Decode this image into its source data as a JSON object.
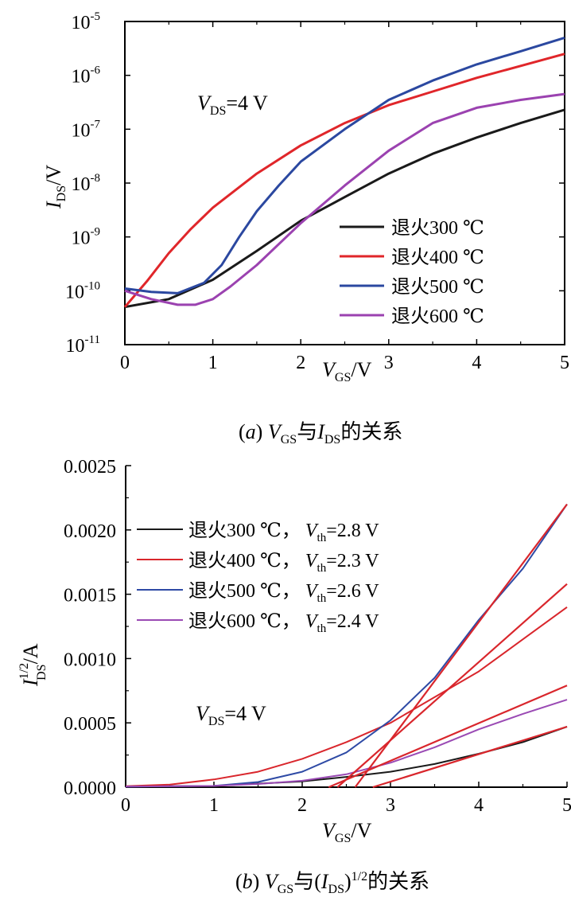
{
  "chart_data": [
    {
      "type": "line",
      "caption": {
        "pre": "(",
        "letter": "a",
        "mid": ") ",
        "v": "V",
        "vsub": "GS",
        "join": "与",
        "i": "I",
        "isub": "DS",
        "tail": "的关系"
      },
      "xlabel": {
        "main": "V",
        "sub": "GS",
        "unit": "/V"
      },
      "ylabel": {
        "main": "I",
        "sub": "DS",
        "unit": "/V"
      },
      "annotation": {
        "main": "V",
        "sub": "DS",
        "rest": "=4 V"
      },
      "x_ticks": [
        "0",
        "1",
        "2",
        "3",
        "4",
        "5"
      ],
      "y_tick_base": "10",
      "y_tick_exponents": [
        "-11",
        "-10",
        "-9",
        "-8",
        "-7",
        "-6",
        "-5"
      ],
      "xlim": [
        0,
        5
      ],
      "ylim": [
        1e-11,
        1e-05
      ],
      "yscale": "log",
      "legend_position": "bottom-right",
      "series": [
        {
          "name": "退火300 ℃",
          "color": "#1a1a1a",
          "x": [
            0,
            0.5,
            1,
            1.5,
            2,
            2.5,
            3,
            3.5,
            4,
            4.5,
            5
          ],
          "y": [
            5e-11,
            7e-11,
            1.6e-10,
            5.5e-10,
            2e-09,
            5.5e-09,
            1.5e-08,
            3.5e-08,
            7e-08,
            1.3e-07,
            2.3e-07
          ]
        },
        {
          "name": "退火400 ℃",
          "color": "#e0262a",
          "x": [
            0,
            0.25,
            0.5,
            0.75,
            1,
            1.5,
            2,
            2.5,
            3,
            3.5,
            4,
            4.5,
            5
          ],
          "y": [
            5e-11,
            1.5e-10,
            5e-10,
            1.4e-09,
            3.5e-09,
            1.5e-08,
            5e-08,
            1.3e-07,
            2.8e-07,
            5e-07,
            9e-07,
            1.5e-06,
            2.5e-06
          ]
        },
        {
          "name": "退火500 ℃",
          "color": "#2b48a0",
          "x": [
            0,
            0.3,
            0.6,
            0.9,
            1.1,
            1.3,
            1.5,
            1.75,
            2,
            2.5,
            3,
            3.5,
            4,
            4.5,
            5
          ],
          "y": [
            1.1e-10,
            9.5e-11,
            9e-11,
            1.4e-10,
            3e-10,
            1e-09,
            3e-09,
            9e-09,
            2.5e-08,
            1e-07,
            3.5e-07,
            8e-07,
            1.6e-06,
            2.8e-06,
            5e-06
          ]
        },
        {
          "name": "退火600 ℃",
          "color": "#9b42b0",
          "x": [
            0,
            0.3,
            0.6,
            0.8,
            1,
            1.2,
            1.5,
            2,
            2.5,
            3,
            3.5,
            4,
            4.5,
            5
          ],
          "y": [
            1e-10,
            7e-11,
            5.5e-11,
            5.5e-11,
            7e-11,
            1.2e-10,
            3e-10,
            1.8e-09,
            9e-09,
            4e-08,
            1.3e-07,
            2.5e-07,
            3.5e-07,
            4.5e-07
          ]
        }
      ]
    },
    {
      "type": "line",
      "caption": {
        "pre": "(",
        "letter": "b",
        "mid": ") ",
        "v": "V",
        "vsub": "GS",
        "join": "与(",
        "i": "I",
        "isub": "DS",
        "close": ")",
        "sup": "1/2",
        "tail": "的关系"
      },
      "xlabel": {
        "main": "V",
        "sub": "GS",
        "unit": "/V"
      },
      "ylabel": {
        "main": "I",
        "sup": "1/2",
        "sub": "DS",
        "unit": "/A"
      },
      "annotation": {
        "main": "V",
        "sub": "DS",
        "rest": "=4 V"
      },
      "x_ticks": [
        "0",
        "1",
        "2",
        "3",
        "4",
        "5"
      ],
      "y_ticks": [
        "0.0000",
        "0.0005",
        "0.0010",
        "0.0015",
        "0.0020",
        "0.0025"
      ],
      "xlim": [
        0,
        5
      ],
      "ylim": [
        0,
        0.0025
      ],
      "legend_position": "top-left",
      "series": [
        {
          "name": "退火300 ℃，",
          "vth_label": "V",
          "vth_sub": "th",
          "vth_value": "=2.8 V",
          "color": "#1a1a1a",
          "x": [
            0,
            1,
            2,
            2.5,
            3,
            3.5,
            4,
            4.5,
            5
          ],
          "y": [
            5e-06,
            1e-05,
            4.5e-05,
            8e-05,
            0.00012,
            0.00018,
            0.00026,
            0.00035,
            0.00047
          ]
        },
        {
          "name": "退火400 ℃，",
          "vth_label": "V",
          "vth_sub": "th",
          "vth_value": "=2.3 V",
          "color": "#d9262c",
          "x": [
            0,
            0.5,
            1,
            1.5,
            2,
            2.5,
            3,
            3.5,
            4,
            4.5,
            5
          ],
          "y": [
            8e-06,
            2e-05,
            6e-05,
            0.00012,
            0.00022,
            0.00035,
            0.0005,
            0.0007,
            0.0009,
            0.00115,
            0.0014
          ]
        },
        {
          "name": "退火500 ℃，",
          "vth_label": "V",
          "vth_sub": "th",
          "vth_value": "=2.6 V",
          "color": "#2e4aa5",
          "x": [
            0,
            1,
            1.5,
            2,
            2.5,
            3,
            3.5,
            4,
            4.5,
            5
          ],
          "y": [
            5e-06,
            1e-05,
            4e-05,
            0.00012,
            0.00027,
            0.00052,
            0.00085,
            0.0013,
            0.0017,
            0.0022
          ]
        },
        {
          "name": "退火600 ℃，",
          "vth_label": "V",
          "vth_sub": "th",
          "vth_value": "=2.4 V",
          "color": "#9a4ab4",
          "x": [
            0,
            1,
            1.5,
            2,
            2.5,
            3,
            3.5,
            4,
            4.5,
            5
          ],
          "y": [
            5e-06,
            1e-05,
            2.5e-05,
            5e-05,
            0.0001,
            0.00019,
            0.00031,
            0.00045,
            0.00057,
            0.00068
          ]
        }
      ],
      "fit_lines": [
        {
          "color": "#d9262c",
          "x": [
            2.8,
            5
          ],
          "y": [
            0,
            0.00047
          ]
        },
        {
          "color": "#d9262c",
          "x": [
            2.3,
            5
          ],
          "y": [
            0,
            0.00079
          ]
        },
        {
          "color": "#d9262c",
          "x": [
            2.6,
            5
          ],
          "y": [
            0,
            0.0022
          ]
        },
        {
          "color": "#d9262c",
          "x": [
            2.4,
            5
          ],
          "y": [
            0,
            0.00158
          ]
        }
      ]
    }
  ]
}
